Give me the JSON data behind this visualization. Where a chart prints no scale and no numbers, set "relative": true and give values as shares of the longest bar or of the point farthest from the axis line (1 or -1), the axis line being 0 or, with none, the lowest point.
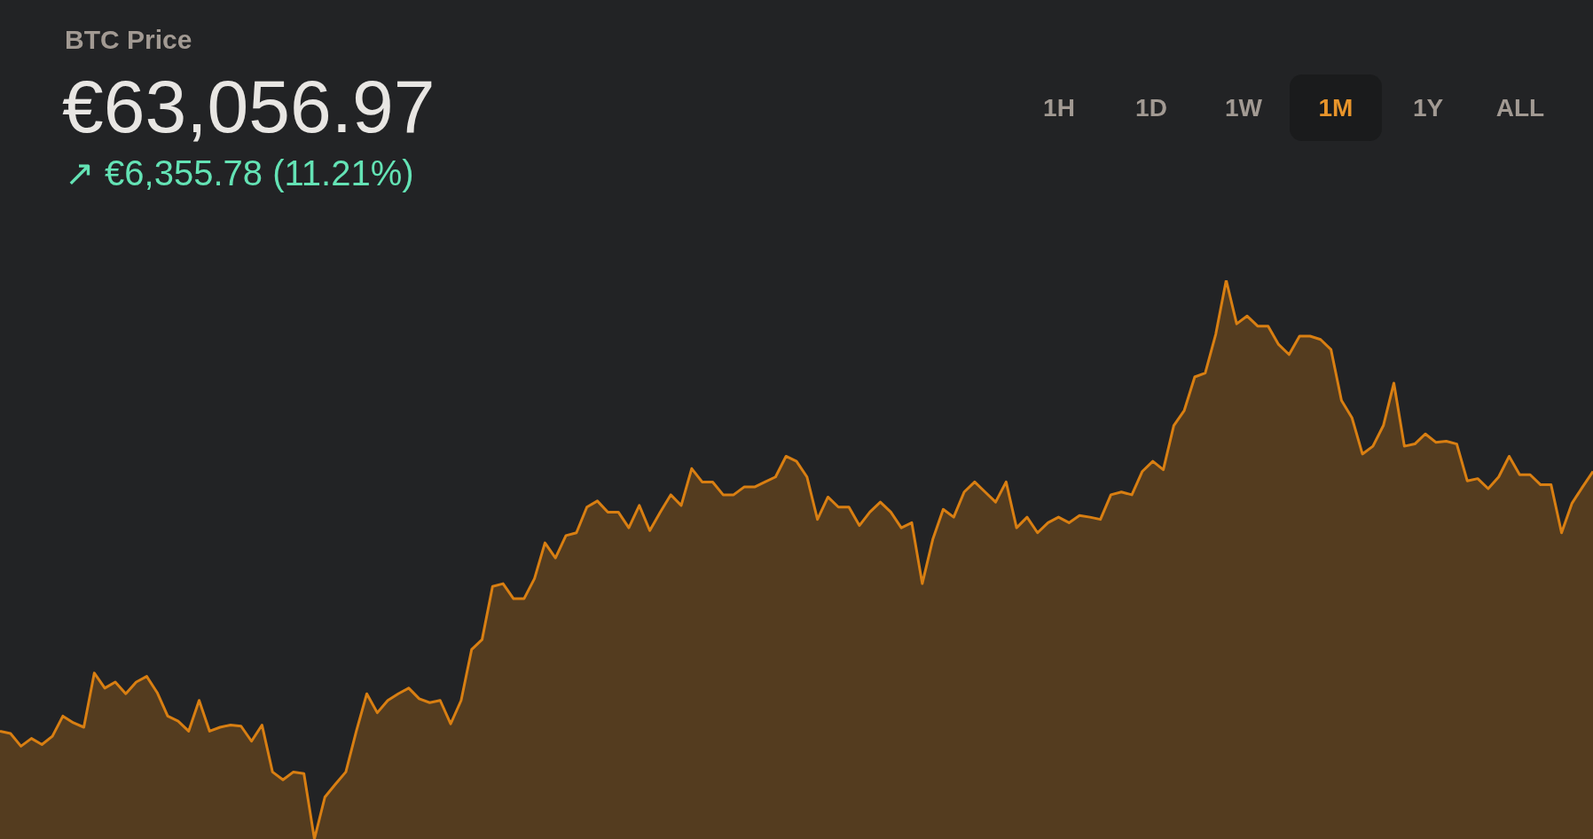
{
  "chart_data": {
    "type": "area",
    "title": "BTC Price",
    "subtitle": "€63,056.97",
    "annotations": [
      "↗ €6,355.78 (11.21%)",
      "1H",
      "1D",
      "1W",
      "1M",
      "1Y",
      "ALL"
    ],
    "relative": true,
    "legend": false,
    "grid": false,
    "tick_labels": false,
    "marker": "none",
    "categories": [
      null,
      null,
      null,
      null,
      null,
      null,
      null,
      null,
      null,
      null,
      null,
      null,
      null,
      null,
      null,
      null,
      null,
      null,
      null,
      null,
      null,
      null,
      null,
      null,
      null,
      null,
      null,
      null,
      null,
      null,
      null,
      null,
      null,
      null,
      null,
      null,
      null,
      null,
      null,
      null,
      null,
      null,
      null,
      null,
      null,
      null,
      null,
      null,
      null,
      null,
      null,
      null,
      null,
      null,
      null,
      null,
      null,
      null,
      null,
      null,
      null,
      null,
      null,
      null,
      null,
      null,
      null,
      null,
      null,
      null,
      null,
      null,
      null,
      null,
      null,
      null,
      null,
      null,
      null,
      null,
      null,
      null,
      null,
      null,
      null,
      null,
      null,
      null,
      null,
      null,
      null,
      null,
      null,
      null,
      null,
      null,
      null,
      null,
      null,
      null,
      null,
      null,
      null,
      null,
      null,
      null,
      null,
      null,
      null,
      null,
      null,
      null,
      null,
      null,
      null,
      null,
      null,
      null,
      null,
      null,
      null,
      null,
      null,
      null,
      null,
      null,
      null,
      null,
      null,
      null,
      null,
      null,
      null,
      null,
      null,
      null,
      null,
      null,
      null,
      null,
      null,
      null,
      null,
      null,
      null,
      null,
      null,
      null,
      null,
      null,
      null,
      null,
      null
    ],
    "series": [
      {
        "color": "#d97f12",
        "values": [
          0.193,
          0.189,
          0.166,
          0.18,
          0.169,
          0.184,
          0.22,
          0.208,
          0.2,
          0.297,
          0.27,
          0.281,
          0.26,
          0.281,
          0.291,
          0.262,
          0.22,
          0.211,
          0.193,
          0.248,
          0.193,
          0.2,
          0.204,
          0.202,
          0.175,
          0.204,
          0.12,
          0.106,
          0.12,
          0.117,
          0,
          0.075,
          0.098,
          0.12,
          0.193,
          0.26,
          0.226,
          0.248,
          0.26,
          0.27,
          0.251,
          0.244,
          0.248,
          0.206,
          0.248,
          0.339,
          0.357,
          0.452,
          0.457,
          0.43,
          0.43,
          0.466,
          0.53,
          0.503,
          0.543,
          0.548,
          0.594,
          0.605,
          0.585,
          0.585,
          0.557,
          0.597,
          0.552,
          0.585,
          0.616,
          0.597,
          0.663,
          0.639,
          0.639,
          0.616,
          0.616,
          0.63,
          0.63,
          0.639,
          0.648,
          0.685,
          0.676,
          0.648,
          0.572,
          0.612,
          0.594,
          0.594,
          0.561,
          0.585,
          0.603,
          0.585,
          0.557,
          0.566,
          0.457,
          0.536,
          0.59,
          0.576,
          0.621,
          0.639,
          0.621,
          0.603,
          0.639,
          0.557,
          0.576,
          0.548,
          0.566,
          0.576,
          0.566,
          0.579,
          0.576,
          0.572,
          0.616,
          0.621,
          0.616,
          0.658,
          0.676,
          0.661,
          0.74,
          0.767,
          0.827,
          0.834,
          0.903,
          1,
          0.922,
          0.936,
          0.918,
          0.918,
          0.885,
          0.867,
          0.9,
          0.9,
          0.894,
          0.876,
          0.785,
          0.754,
          0.689,
          0.703,
          0.74,
          0.816,
          0.703,
          0.707,
          0.725,
          0.71,
          0.712,
          0.707,
          0.641,
          0.645,
          0.627,
          0.648,
          0.685,
          0.652,
          0.652,
          0.634,
          0.634,
          0.548,
          0.601,
          0.63,
          0.658
        ]
      }
    ]
  }
}
